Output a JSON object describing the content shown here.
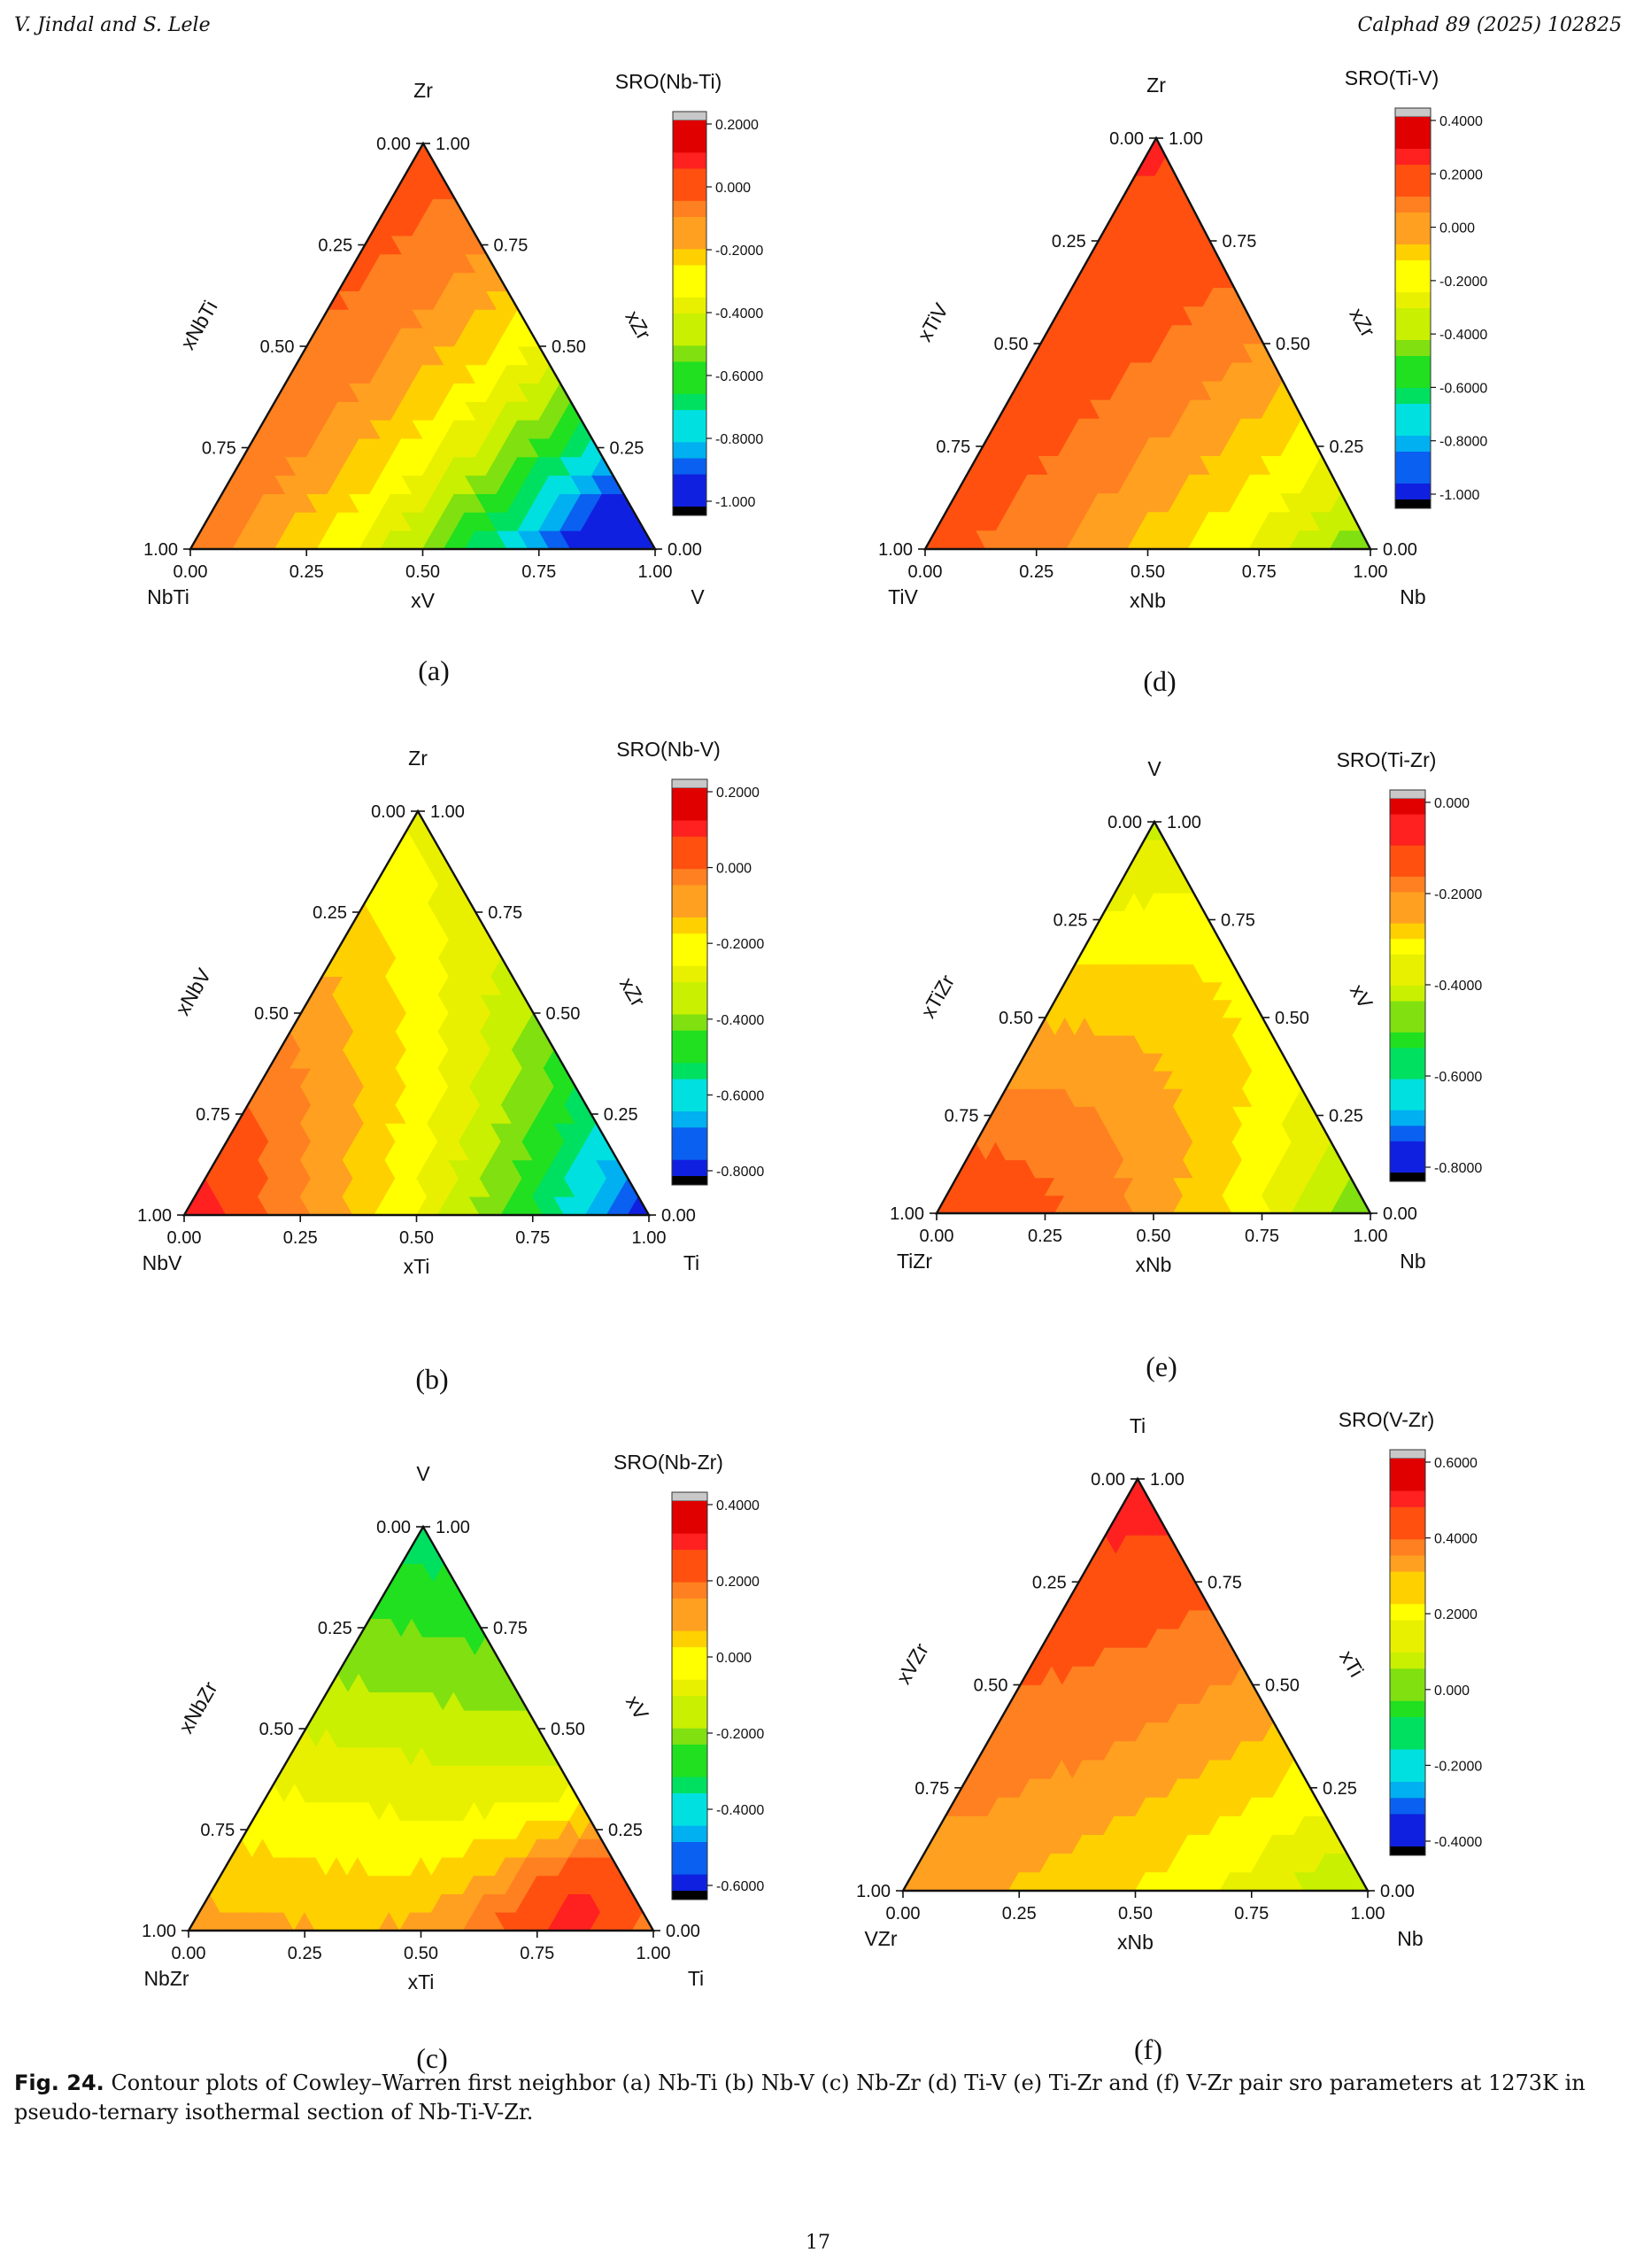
{
  "header": {
    "authors": "V. Jindal and S. Lele",
    "journal": "Calphad 89 (2025) 102825"
  },
  "caption": {
    "label": "Fig. 24.",
    "text": "Contour plots of Cowley–Warren first neighbor (a) Nb-Ti (b) Nb-V (c) Nb-Zr (d) Ti-V (e) Ti-Zr and (f) V-Zr pair sro parameters at 1273K in pseudo-ternary isothermal section of Nb-Ti-V-Zr."
  },
  "page_number": "17",
  "axis_ticks": [
    "0.00",
    "0.25",
    "0.50",
    "0.75",
    "1.00"
  ],
  "palette": [
    "#000000",
    "#1020e0",
    "#0a60f0",
    "#00b0f0",
    "#00e0e0",
    "#00e060",
    "#20e020",
    "#80e010",
    "#c8f000",
    "#e8f000",
    "#ffff00",
    "#ffd000",
    "#ffa020",
    "#ff8020",
    "#ff5010",
    "#ff2020",
    "#e00000"
  ],
  "chart_data": [
    {
      "panel": "(a)",
      "type": "heatmap",
      "plot": "ternary contour",
      "colorbar_title": "SRO(Nb-Ti)",
      "colorbar_ticks": [
        "0.2000",
        "0.000",
        "-0.2000",
        "-0.4000",
        "-0.6000",
        "-0.8000",
        "-1.000"
      ],
      "range": [
        -1.0,
        0.2
      ],
      "apex": "Zr",
      "left_corner": "NbTi",
      "right_corner": "V",
      "left_axis": "xNbTi",
      "right_axis": "xZr",
      "bottom_axis": "xV",
      "field": {
        "base": -0.05,
        "gx": -0.55,
        "gx2": -0.7,
        "gy": 0.05,
        "gxy": 0.55,
        "k": 0.0,
        "amp": 0.0
      }
    },
    {
      "panel": "(b)",
      "type": "heatmap",
      "plot": "ternary contour",
      "colorbar_title": "SRO(Nb-V)",
      "colorbar_ticks": [
        "0.2000",
        "0.000",
        "-0.2000",
        "-0.4000",
        "-0.6000",
        "-0.8000"
      ],
      "range": [
        -0.8,
        0.2
      ],
      "apex": "Zr",
      "left_corner": "NbV",
      "right_corner": "Ti",
      "left_axis": "xNbV",
      "right_axis": "xZr",
      "bottom_axis": "xTi",
      "field": {
        "base": 0.12,
        "gx": -0.55,
        "gx2": -0.35,
        "gy": -0.38,
        "gxy": 0.25,
        "k": 0.0,
        "amp": 0.0
      }
    },
    {
      "panel": "(c)",
      "type": "heatmap",
      "plot": "ternary contour",
      "colorbar_title": "SRO(Nb-Zr)",
      "colorbar_ticks": [
        "0.4000",
        "0.2000",
        "0.000",
        "-0.2000",
        "-0.4000",
        "-0.6000"
      ],
      "range": [
        -0.6,
        0.4
      ],
      "apex": "V",
      "left_corner": "NbZr",
      "right_corner": "Ti",
      "left_axis": "xNbZr",
      "right_axis": "xV",
      "bottom_axis": "xTi",
      "field": {
        "base": 0.12,
        "gx": -0.1,
        "gx2": 0.0,
        "gy": -0.45,
        "gxy": 0.0,
        "k": 0.5,
        "amp": 0.28
      }
    },
    {
      "panel": "(d)",
      "type": "heatmap",
      "plot": "ternary contour",
      "colorbar_title": "SRO(Ti-V)",
      "colorbar_ticks": [
        "0.4000",
        "0.2000",
        "0.000",
        "-0.2000",
        "-0.4000",
        "-0.6000",
        "-0.8000",
        "-1.000"
      ],
      "range": [
        -1.0,
        0.4
      ],
      "apex": "Zr",
      "left_corner": "TiV",
      "right_corner": "Nb",
      "left_axis": "xTiV",
      "right_axis": "xZr",
      "bottom_axis": "xNb",
      "field": {
        "base": 0.18,
        "gx": -0.35,
        "gx2": -0.3,
        "gy": 0.05,
        "gxy": 0.35,
        "k": 0.0,
        "amp": 0.0
      }
    },
    {
      "panel": "(e)",
      "type": "heatmap",
      "plot": "ternary contour",
      "colorbar_title": "SRO(Ti-Zr)",
      "colorbar_ticks": [
        "0.000",
        "-0.2000",
        "-0.4000",
        "-0.6000",
        "-0.8000"
      ],
      "range": [
        -0.8,
        0.05
      ],
      "apex": "V",
      "left_corner": "TiZr",
      "right_corner": "Nb",
      "left_axis": "xTiZr",
      "right_axis": "xV",
      "bottom_axis": "xNb",
      "field": {
        "base": -0.05,
        "gx": -0.1,
        "gx2": -0.35,
        "gy": -0.35,
        "gxy": 0.3,
        "k": 0.0,
        "amp": 0.0
      }
    },
    {
      "panel": "(f)",
      "type": "heatmap",
      "plot": "ternary contour",
      "colorbar_title": "SRO(V-Zr)",
      "colorbar_ticks": [
        "0.6000",
        "0.4000",
        "0.2000",
        "0.000",
        "-0.2000",
        "-0.4000"
      ],
      "range": [
        -0.45,
        0.62
      ],
      "apex": "Ti",
      "left_corner": "VZr",
      "right_corner": "Nb",
      "left_axis": "xVZr",
      "right_axis": "xTi",
      "bottom_axis": "xNb",
      "field": {
        "base": 0.32,
        "gx": -0.12,
        "gx2": -0.2,
        "gy": 0.2,
        "gxy": 0.1,
        "k": 0.0,
        "amp": 0.0
      }
    }
  ]
}
